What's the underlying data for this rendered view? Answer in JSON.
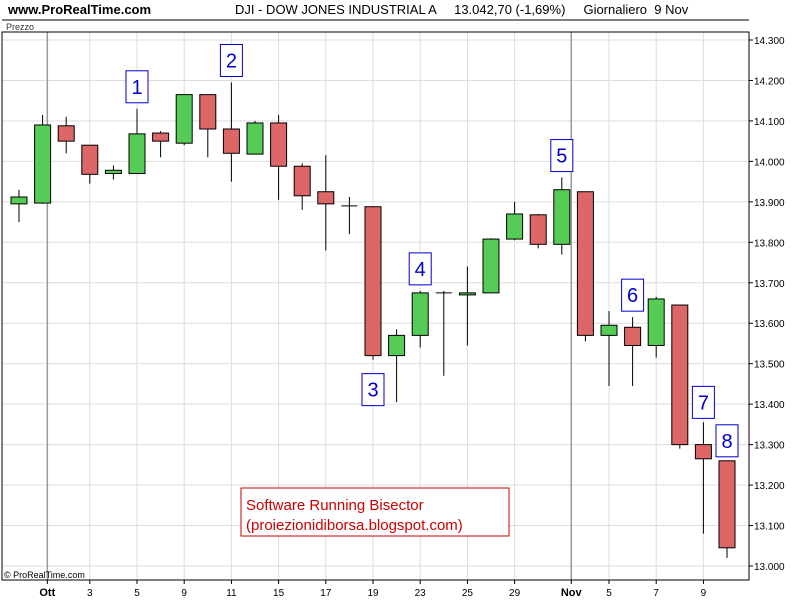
{
  "header": {
    "site": "www.ProRealTime.com",
    "title": "DJI - DOW JONES INDUSTRIAL A     13.042,70 (-1,69%)     Giornaliero  9 Nov"
  },
  "panel_label": "Prezzo",
  "copyright": "© ProRealTime.com",
  "annotation": {
    "line1": "Software Running Bisector",
    "line2": "(proiezionidiborsa.blogspot.com)"
  },
  "colors": {
    "up": "#55cc55",
    "down": "#dd6666",
    "number": "#0000cc",
    "annotation": "#cc0000"
  },
  "chart_data": {
    "type": "candlestick",
    "y_ticks": [
      "14.300",
      "14.200",
      "14.100",
      "14.000",
      "13.900",
      "13.800",
      "13.700",
      "13.600",
      "13.500",
      "13.400",
      "13.300",
      "13.200",
      "13.100",
      "13.000"
    ],
    "ylim": [
      12990,
      14320
    ],
    "x_ticks": [
      {
        "label": "Ott",
        "index": 1.2,
        "bold": true
      },
      {
        "label": "3",
        "index": 3
      },
      {
        "label": "5",
        "index": 5
      },
      {
        "label": "9",
        "index": 7
      },
      {
        "label": "11",
        "index": 9
      },
      {
        "label": "15",
        "index": 11
      },
      {
        "label": "17",
        "index": 13
      },
      {
        "label": "19",
        "index": 15
      },
      {
        "label": "23",
        "index": 17
      },
      {
        "label": "25",
        "index": 19
      },
      {
        "label": "29",
        "index": 21
      },
      {
        "label": "Nov",
        "index": 23.4,
        "bold": true
      },
      {
        "label": "5",
        "index": 25
      },
      {
        "label": "7",
        "index": 27
      },
      {
        "label": "9",
        "index": 29
      }
    ],
    "candles": [
      {
        "open": 13895,
        "high": 13930,
        "low": 13850,
        "close": 13912
      },
      {
        "open": 13897,
        "high": 14115,
        "low": 13895,
        "close": 14090
      },
      {
        "open": 14088,
        "high": 14110,
        "low": 14020,
        "close": 14050
      },
      {
        "open": 14040,
        "high": 14040,
        "low": 13945,
        "close": 13968
      },
      {
        "open": 13970,
        "high": 13990,
        "low": 13955,
        "close": 13978
      },
      {
        "open": 13970,
        "high": 14130,
        "low": 13970,
        "close": 14068
      },
      {
        "open": 14070,
        "high": 14075,
        "low": 14010,
        "close": 14050
      },
      {
        "open": 14045,
        "high": 14165,
        "low": 14040,
        "close": 14165
      },
      {
        "open": 14165,
        "high": 14165,
        "low": 14010,
        "close": 14080
      },
      {
        "open": 14080,
        "high": 14195,
        "low": 13950,
        "close": 14020
      },
      {
        "open": 14018,
        "high": 14100,
        "low": 14018,
        "close": 14095
      },
      {
        "open": 14095,
        "high": 14115,
        "low": 13905,
        "close": 13988
      },
      {
        "open": 13988,
        "high": 13995,
        "low": 13880,
        "close": 13915
      },
      {
        "open": 13925,
        "high": 14015,
        "low": 13780,
        "close": 13895
      },
      {
        "open": 13890,
        "high": 13912,
        "low": 13820,
        "close": 13888
      },
      {
        "open": 13888,
        "high": 13888,
        "low": 13510,
        "close": 13520
      },
      {
        "open": 13520,
        "high": 13585,
        "low": 13405,
        "close": 13570
      },
      {
        "open": 13570,
        "high": 13680,
        "low": 13540,
        "close": 13675
      },
      {
        "open": 13675,
        "high": 13680,
        "low": 13470,
        "close": 13675
      },
      {
        "open": 13670,
        "high": 13740,
        "low": 13545,
        "close": 13675
      },
      {
        "open": 13675,
        "high": 13810,
        "low": 13675,
        "close": 13808
      },
      {
        "open": 13808,
        "high": 13900,
        "low": 13805,
        "close": 13870
      },
      {
        "open": 13868,
        "high": 13870,
        "low": 13785,
        "close": 13795
      },
      {
        "open": 13795,
        "high": 13960,
        "low": 13770,
        "close": 13930
      },
      {
        "open": 13925,
        "high": 13925,
        "low": 13555,
        "close": 13570
      },
      {
        "open": 13570,
        "high": 13630,
        "low": 13445,
        "close": 13595
      },
      {
        "open": 13590,
        "high": 13615,
        "low": 13445,
        "close": 13545
      },
      {
        "open": 13545,
        "high": 13665,
        "low": 13515,
        "close": 13660
      },
      {
        "open": 13645,
        "high": 13645,
        "low": 13290,
        "close": 13300
      },
      {
        "open": 13300,
        "high": 13355,
        "low": 13080,
        "close": 13265
      },
      {
        "open": 13260,
        "high": 13260,
        "low": 13020,
        "close": 13045
      }
    ],
    "markers": [
      {
        "label": "1",
        "candle": 5
      },
      {
        "label": "2",
        "candle": 9
      },
      {
        "label": "3",
        "candle": 15
      },
      {
        "label": "4",
        "candle": 17
      },
      {
        "label": "5",
        "candle": 23
      },
      {
        "label": "6",
        "candle": 26
      },
      {
        "label": "7",
        "candle": 29
      },
      {
        "label": "8",
        "candle": 30
      }
    ]
  }
}
